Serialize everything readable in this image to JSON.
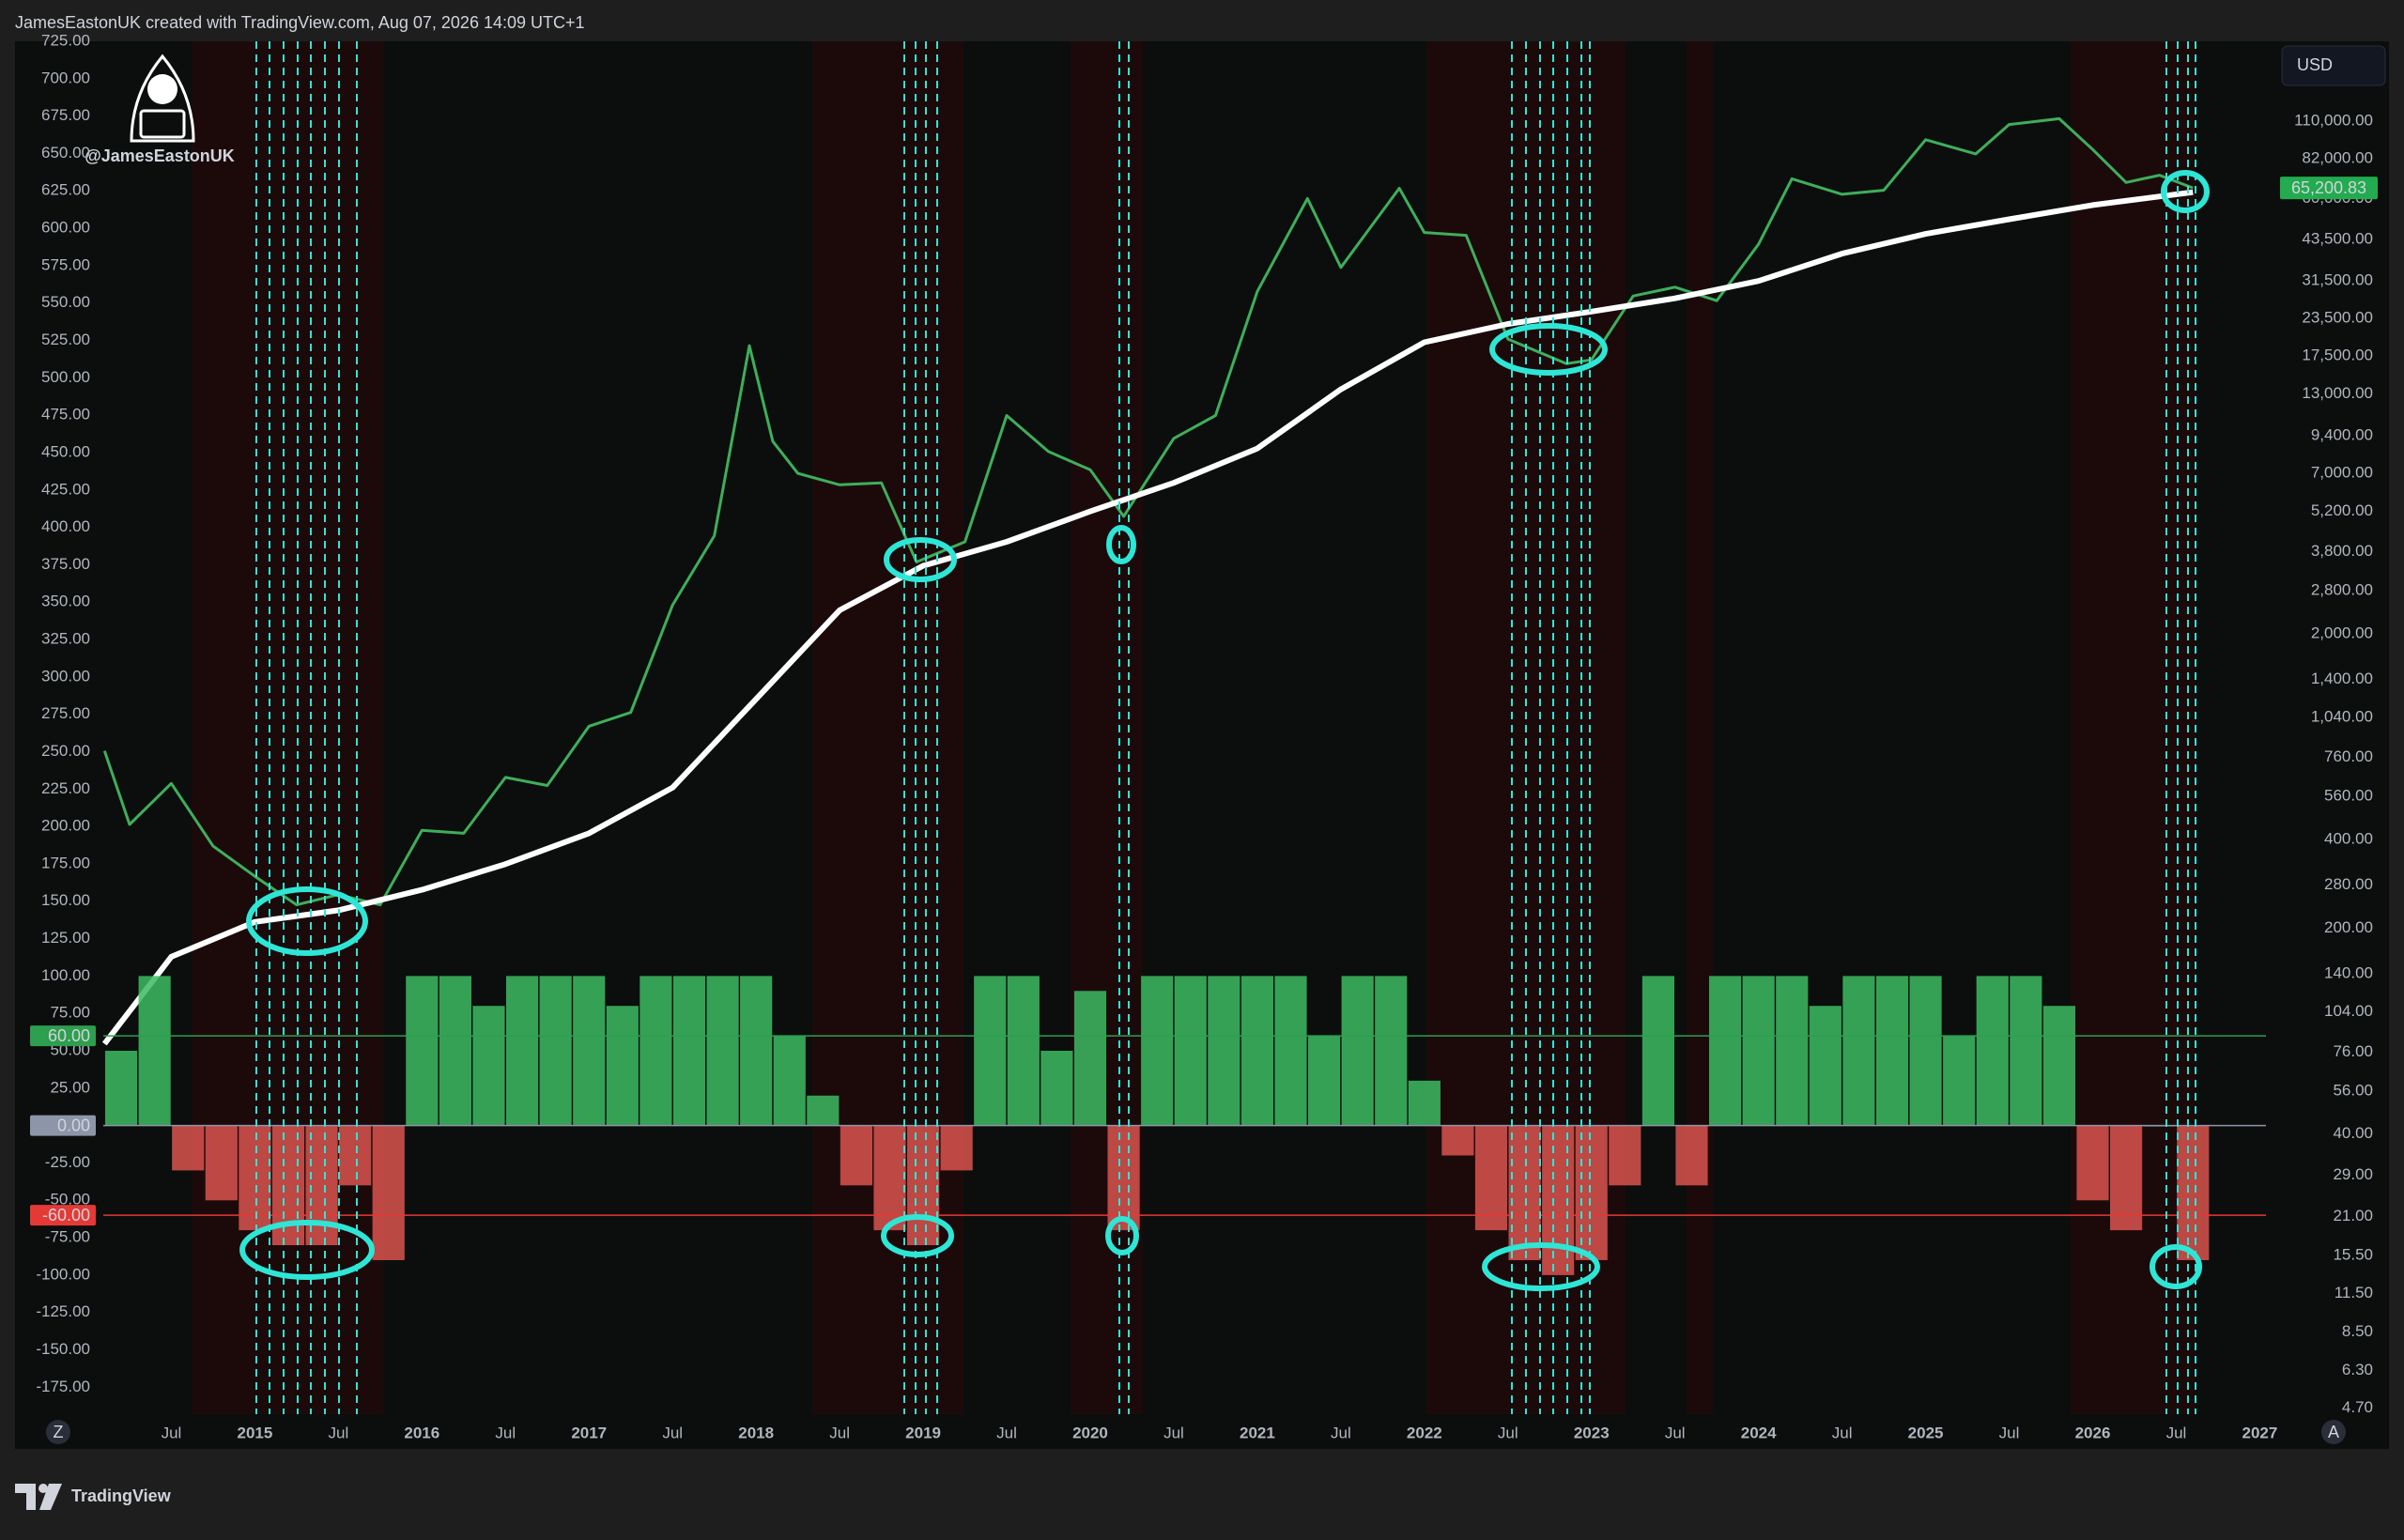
{
  "header": {
    "credit": "JamesEastonUK created with TradingView.com, Aug 07, 2026 14:09 UTC+1",
    "currency": "USD",
    "watermark": "@JamesEastonUK"
  },
  "footer": {
    "brand": "TradingView",
    "left_button": "Z",
    "right_button": "A"
  },
  "chart_data": [
    {
      "type": "line",
      "log_scale": true,
      "grid": false,
      "xlim": [
        2013.587,
        2027.037
      ],
      "xticks": [
        {
          "value": 2014.5,
          "label": "Jul"
        },
        2015,
        {
          "value": 2015.5,
          "label": "Jul"
        },
        2016,
        {
          "value": 2016.5,
          "label": "Jul"
        },
        2017,
        {
          "value": 2017.5,
          "label": "Jul"
        },
        2018,
        {
          "value": 2018.5,
          "label": "Jul"
        },
        2019,
        {
          "value": 2019.5,
          "label": "Jul"
        },
        2020,
        {
          "value": 2020.5,
          "label": "Jul"
        },
        2021,
        {
          "value": 2021.5,
          "label": "Jul"
        },
        2022,
        {
          "value": 2022.5,
          "label": "Jul"
        },
        2023,
        {
          "value": 2023.5,
          "label": "Jul"
        },
        2024,
        {
          "value": 2024.5,
          "label": "Jul"
        },
        2025,
        {
          "value": 2025.5,
          "label": "Jul"
        },
        2026,
        {
          "value": 2026.5,
          "label": "Jul"
        },
        2027
      ],
      "ylim": [
        4.48,
        205000
      ],
      "yticks": [
        {
          "value": 110000,
          "label": "110,000.00"
        },
        {
          "value": 82000,
          "label": "82,000.00"
        },
        {
          "value": 60000,
          "label": "60,000.00"
        },
        {
          "value": 43500,
          "label": "43,500.00"
        },
        {
          "value": 31500,
          "label": "31,500.00"
        },
        {
          "value": 23500,
          "label": "23,500.00"
        },
        {
          "value": 17500,
          "label": "17,500.00"
        },
        {
          "value": 13000,
          "label": "13,000.00"
        },
        {
          "value": 9400,
          "label": "9,400.00"
        },
        {
          "value": 7000,
          "label": "7,000.00"
        },
        {
          "value": 5200,
          "label": "5,200.00"
        },
        {
          "value": 3800,
          "label": "3,800.00"
        },
        {
          "value": 2800,
          "label": "2,800.00"
        },
        {
          "value": 2000,
          "label": "2,000.00"
        },
        {
          "value": 1400,
          "label": "1,400.00"
        },
        {
          "value": 1040,
          "label": "1,040.00"
        },
        {
          "value": 760,
          "label": "760.00"
        },
        {
          "value": 560,
          "label": "560.00"
        },
        {
          "value": 400,
          "label": "400.00"
        },
        {
          "value": 280,
          "label": "280.00"
        },
        {
          "value": 200,
          "label": "200.00"
        },
        {
          "value": 140,
          "label": "140.00"
        },
        {
          "value": 104,
          "label": "104.00"
        },
        {
          "value": 76,
          "label": "76.00"
        },
        {
          "value": 56,
          "label": "56.00"
        },
        {
          "value": 40,
          "label": "40.00"
        },
        {
          "value": 29,
          "label": "29.00"
        },
        {
          "value": 21,
          "label": "21.00"
        },
        {
          "value": 15.5,
          "label": "15.50"
        },
        {
          "value": 11.5,
          "label": "11.50"
        },
        {
          "value": 8.5,
          "label": "8.50"
        },
        {
          "value": 6.3,
          "label": "6.30"
        },
        {
          "value": 4.7,
          "label": "4.70"
        }
      ],
      "series": [
        {
          "color": "#3fae5a",
          "x": [
            2014.1,
            2014.25,
            2014.5,
            2014.75,
            2015.0,
            2015.25,
            2015.5,
            2015.75,
            2016.0,
            2016.25,
            2016.5,
            2016.75,
            2017.0,
            2017.25,
            2017.5,
            2017.75,
            2017.96,
            2018.1,
            2018.25,
            2018.5,
            2018.75,
            2018.96,
            2019.25,
            2019.5,
            2019.75,
            2020.0,
            2020.2,
            2020.5,
            2020.75,
            2021.0,
            2021.3,
            2021.5,
            2021.85,
            2022.0,
            2022.25,
            2022.5,
            2022.85,
            2023.0,
            2023.25,
            2023.5,
            2023.75,
            2024.0,
            2024.2,
            2024.5,
            2024.75,
            2025.0,
            2025.3,
            2025.5,
            2025.8,
            2026.0,
            2026.2,
            2026.4,
            2026.6
          ],
          "values": [
            800,
            450,
            620,
            380,
            300,
            240,
            260,
            240,
            430,
            420,
            650,
            610,
            970,
            1080,
            2500,
            4300,
            19000,
            9000,
            7000,
            6400,
            6500,
            3500,
            4100,
            11000,
            8300,
            7200,
            5000,
            9200,
            11000,
            29000,
            60000,
            35000,
            65000,
            46000,
            45000,
            20000,
            16500,
            17000,
            28000,
            30000,
            27000,
            42000,
            70000,
            62000,
            64000,
            95000,
            85000,
            107000,
            112000,
            88000,
            68000,
            72000,
            65200
          ]
        },
        {
          "color": "#ffffff",
          "x": [
            2014.1,
            2014.5,
            2015.0,
            2015.5,
            2016.0,
            2016.5,
            2017.0,
            2017.5,
            2018.0,
            2018.5,
            2019.0,
            2019.5,
            2020.0,
            2020.5,
            2021.0,
            2021.5,
            2022.0,
            2022.5,
            2023.0,
            2023.5,
            2024.0,
            2024.5,
            2025.0,
            2025.5,
            2026.0,
            2026.6
          ],
          "values": [
            81,
            160,
            210,
            230,
            270,
            330,
            420,
            600,
            1200,
            2400,
            3400,
            4100,
            5200,
            6500,
            8500,
            13500,
            19500,
            22500,
            24800,
            27500,
            31500,
            39000,
            45500,
            51000,
            57000,
            63000
          ]
        }
      ],
      "last_value": {
        "value": 65200.83,
        "label": "65,200.83",
        "color": "#22ab4f"
      }
    },
    {
      "type": "bar",
      "grid": false,
      "xlim": [
        2013.587,
        2027.037
      ],
      "ylim": [
        -193,
        725
      ],
      "yticks": [
        {
          "value": 725,
          "label": "725.00"
        },
        {
          "value": 700,
          "label": "700.00"
        },
        {
          "value": 675,
          "label": "675.00"
        },
        {
          "value": 650,
          "label": "650.00"
        },
        {
          "value": 625,
          "label": "625.00"
        },
        {
          "value": 600,
          "label": "600.00"
        },
        {
          "value": 575,
          "label": "575.00"
        },
        {
          "value": 550,
          "label": "550.00"
        },
        {
          "value": 525,
          "label": "525.00"
        },
        {
          "value": 500,
          "label": "500.00"
        },
        {
          "value": 475,
          "label": "475.00"
        },
        {
          "value": 450,
          "label": "450.00"
        },
        {
          "value": 425,
          "label": "425.00"
        },
        {
          "value": 400,
          "label": "400.00"
        },
        {
          "value": 375,
          "label": "375.00"
        },
        {
          "value": 350,
          "label": "350.00"
        },
        {
          "value": 325,
          "label": "325.00"
        },
        {
          "value": 300,
          "label": "300.00"
        },
        {
          "value": 275,
          "label": "275.00"
        },
        {
          "value": 250,
          "label": "250.00"
        },
        {
          "value": 225,
          "label": "225.00"
        },
        {
          "value": 200,
          "label": "200.00"
        },
        {
          "value": 175,
          "label": "175.00"
        },
        {
          "value": 150,
          "label": "150.00"
        },
        {
          "value": 125,
          "label": "125.00"
        },
        {
          "value": 100,
          "label": "100.00"
        },
        {
          "value": 75,
          "label": "75.00"
        },
        {
          "value": 50,
          "label": "50.00"
        },
        {
          "value": 25,
          "label": "25.00"
        },
        {
          "value": -25,
          "label": "-25.00"
        },
        {
          "value": -50,
          "label": "-50.00"
        },
        {
          "value": -75,
          "label": "-75.00"
        },
        {
          "value": -100,
          "label": "-100.00"
        },
        {
          "value": -125,
          "label": "-125.00"
        },
        {
          "value": -150,
          "label": "-150.00"
        },
        {
          "value": -175,
          "label": "-175.00"
        }
      ],
      "x": [
        2014.2,
        2014.4,
        2014.6,
        2014.8,
        2015.0,
        2015.2,
        2015.4,
        2015.6,
        2015.8,
        2016.0,
        2016.2,
        2016.4,
        2016.6,
        2016.8,
        2017.0,
        2017.2,
        2017.4,
        2017.6,
        2017.8,
        2018.0,
        2018.2,
        2018.4,
        2018.6,
        2018.8,
        2019.0,
        2019.2,
        2019.4,
        2019.6,
        2019.8,
        2020.0,
        2020.2,
        2020.4,
        2020.6,
        2020.8,
        2021.0,
        2021.2,
        2021.4,
        2021.6,
        2021.8,
        2022.0,
        2022.2,
        2022.4,
        2022.6,
        2022.8,
        2023.0,
        2023.2,
        2023.4,
        2023.6,
        2023.8,
        2024.0,
        2024.2,
        2024.4,
        2024.6,
        2024.8,
        2025.0,
        2025.2,
        2025.4,
        2025.6,
        2025.8,
        2026.0,
        2026.2,
        2026.4,
        2026.6
      ],
      "values": [
        50,
        100,
        -30,
        -50,
        -70,
        -80,
        -80,
        -40,
        -90,
        100,
        100,
        80,
        100,
        100,
        100,
        80,
        100,
        100,
        100,
        100,
        60,
        20,
        -40,
        -70,
        -80,
        -30,
        100,
        100,
        50,
        90,
        -70,
        100,
        100,
        100,
        100,
        100,
        60,
        100,
        100,
        30,
        -20,
        -70,
        -90,
        -100,
        -90,
        -40,
        100,
        -40,
        100,
        100,
        100,
        80,
        100,
        100,
        100,
        60,
        100,
        100,
        80,
        -50,
        -70,
        0,
        -90
      ],
      "positive_color": "#3dbb63",
      "negative_color": "#d9534f",
      "levels": [
        {
          "value": 60,
          "label": "60.00",
          "color": "#2e9e4f"
        },
        {
          "value": 0,
          "label": "0.00",
          "color": "#8d95a8"
        },
        {
          "value": -60,
          "label": "-60.00",
          "color": "#e53935"
        }
      ]
    }
  ]
}
